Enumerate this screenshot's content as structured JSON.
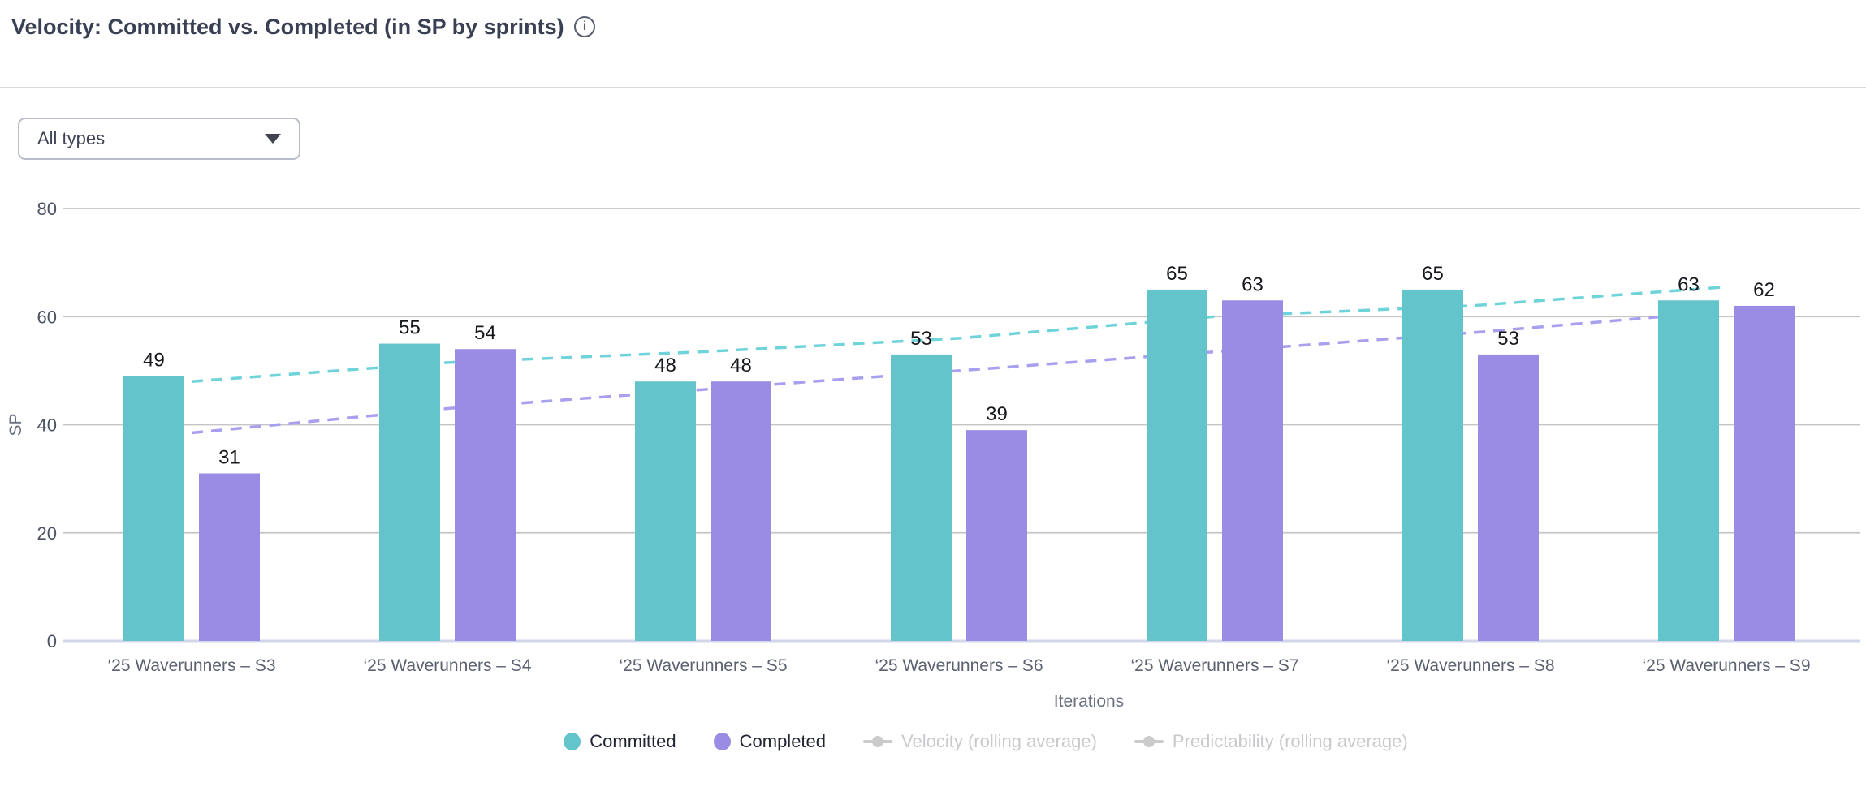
{
  "header": {
    "title": "Velocity: Committed vs. Completed (in SP by sprints)",
    "info_icon_glyph": "i"
  },
  "controls": {
    "type_filter": {
      "value": "All types"
    }
  },
  "colors": {
    "committed": "#63c4cc",
    "completed": "#9a8ce4",
    "velocity_line": "#6fd4da",
    "predictability_line": "#a89fee",
    "grid_line": "#c5c5c5",
    "axis_line": "#d2d6ea",
    "title_text": "#3a4053",
    "disabled_legend": "#c7c9cc"
  },
  "chart_data": {
    "type": "bar",
    "title": "Velocity: Committed vs. Completed (in SP by sprints)",
    "categories": [
      "‘25 Waverunners – S3",
      "‘25 Waverunners – S4",
      "‘25 Waverunners – S5",
      "‘25 Waverunners – S6",
      "‘25 Waverunners – S7",
      "‘25 Waverunners – S8",
      "‘25 Waverunners – S9"
    ],
    "series": [
      {
        "name": "Committed",
        "type": "bar",
        "color": "#63c4cc",
        "values": [
          49,
          55,
          48,
          53,
          65,
          65,
          63
        ]
      },
      {
        "name": "Completed",
        "type": "bar",
        "color": "#9a8ce4",
        "values": [
          31,
          54,
          48,
          39,
          63,
          53,
          62
        ]
      },
      {
        "name": "Velocity (rolling average)",
        "type": "line",
        "style": "dashed",
        "color": "#6fd4da",
        "estimated": true,
        "values": [
          48,
          51.5,
          53.5,
          56,
          60,
          62,
          65.5
        ]
      },
      {
        "name": "Predictability (rolling average)",
        "type": "line",
        "style": "dashed",
        "color": "#a89fee",
        "estimated": true,
        "values": [
          38.5,
          43,
          46.5,
          50,
          53.5,
          57,
          61
        ]
      }
    ],
    "xlabel": "Iterations",
    "ylabel": "SP",
    "ylim": [
      0,
      80
    ],
    "yticks": [
      0,
      20,
      40,
      60,
      80
    ],
    "grid": true,
    "bar_value_labels": true,
    "legend_position": "bottom"
  },
  "legend": {
    "items": [
      {
        "label": "Committed",
        "marker": "circle",
        "color": "#63c4cc",
        "disabled": false
      },
      {
        "label": "Completed",
        "marker": "circle",
        "color": "#9a8ce4",
        "disabled": false
      },
      {
        "label": "Velocity (rolling average)",
        "marker": "line-dot",
        "color": "#cbcbcb",
        "disabled": true
      },
      {
        "label": "Predictability (rolling average)",
        "marker": "line-dot",
        "color": "#cbcbcb",
        "disabled": true
      }
    ]
  }
}
